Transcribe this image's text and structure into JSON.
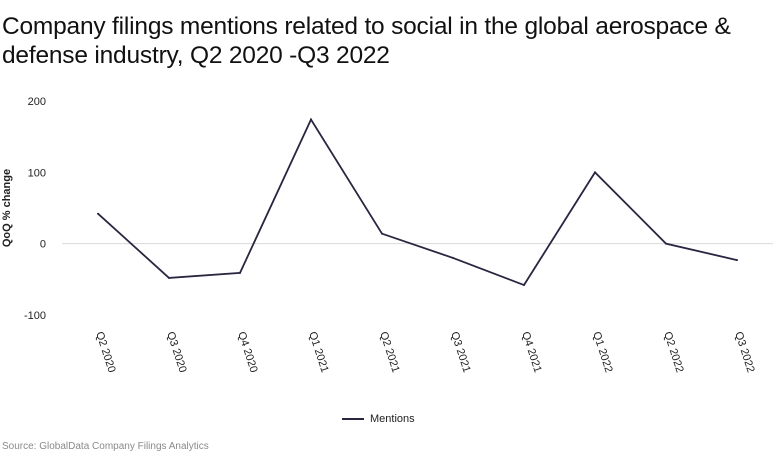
{
  "title": "Company filings mentions related to social in the global aerospace & defense industry, Q2 2020 -Q3 2022",
  "source": "Source: GlobalData Company Filings Analytics",
  "colors": {
    "line": "#2a2540",
    "zero_line": "#d9d9d9"
  },
  "chart_data": {
    "type": "line",
    "title": "Company filings mentions related to social in the global aerospace & defense industry, Q2 2020 -Q3 2022",
    "xlabel": "",
    "ylabel": "QoQ % change",
    "ylim": [
      -100,
      200
    ],
    "yticks": [
      200,
      100,
      0,
      -100
    ],
    "grid": false,
    "legend_position": "bottom-center",
    "categories": [
      "Q2 2020",
      "Q3 2020",
      "Q4 2020",
      "Q1 2021",
      "Q2 2021",
      "Q3 2021",
      "Q4 2021",
      "Q1 2022",
      "Q2 2022",
      "Q3 2022"
    ],
    "series": [
      {
        "name": "Mentions",
        "values": [
          42,
          -48,
          -41,
          174,
          14,
          -20,
          -58,
          100,
          0,
          -23
        ]
      }
    ]
  }
}
